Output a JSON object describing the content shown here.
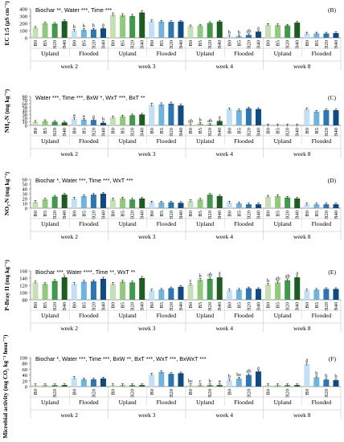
{
  "colors": {
    "upland": [
      "#c5e0b3",
      "#8fcb7a",
      "#3f9a4a",
      "#1b5e20"
    ],
    "flooded": [
      "#bfe0f5",
      "#6fb3e0",
      "#2b77b5",
      "#0d4b86"
    ],
    "axis": "#777777",
    "text": "#000000"
  },
  "groups": {
    "weeks": [
      "week 2",
      "week 3",
      "week 4",
      "week 8"
    ],
    "treatments": [
      "Upland",
      "Flooded"
    ]
  },
  "chart_data": [
    {
      "type": "bar",
      "panel": "(B)",
      "ylabel": "EC 1:5 (µS cm⁻¹)",
      "annotation": "Biochar **, Water ***, Time ***",
      "yticks": [
        "0",
        "100",
        "200",
        "300",
        "400"
      ],
      "ylim": [
        0,
        400
      ],
      "categories": [
        "B0",
        "B5",
        "B20",
        "B40"
      ],
      "values": [
        [
          [
            140,
            200,
            195,
            230
          ],
          [
            100,
            110,
            115,
            130
          ]
        ],
        [
          [
            320,
            310,
            300,
            350
          ],
          [
            230,
            225,
            220,
            225
          ]
        ],
        [
          [
            160,
            170,
            205,
            225
          ],
          [
            20,
            25,
            40,
            85
          ]
        ],
        [
          [
            180,
            175,
            170,
            210
          ],
          [
            60,
            60,
            60,
            65
          ]
        ]
      ],
      "letters": [
        [
          [
            "",
            "",
            "",
            ""
          ],
          [
            "b",
            "b",
            "b",
            "a"
          ]
        ],
        [
          [
            "",
            "",
            "",
            ""
          ],
          [
            "",
            "",
            "",
            ""
          ]
        ],
        [
          [
            "",
            "",
            "",
            ""
          ],
          [
            "b",
            "b",
            "ab",
            "a"
          ]
        ],
        [
          [
            "",
            "",
            "",
            ""
          ],
          [
            "",
            "",
            "",
            ""
          ]
        ]
      ]
    },
    {
      "type": "bar",
      "panel": "(C)",
      "ylabel": "NH₄-N (mg kg⁻¹)",
      "annotation": "Water ***, Time ***, BxW *, WxT ***, BxT **",
      "yticks": [
        "0",
        "10",
        "20",
        "30",
        "40",
        "50",
        "60",
        "70",
        "80"
      ],
      "ylim": [
        0,
        80
      ],
      "categories": [
        "B0",
        "B5",
        "B20",
        "B40"
      ],
      "values": [
        [
          [
            10,
            12,
            10,
            8
          ],
          [
            18,
            16,
            15,
            7
          ]
        ],
        [
          [
            22,
            25,
            28,
            30
          ],
          [
            57,
            58,
            60,
            55
          ]
        ],
        [
          [
            1,
            5,
            2,
            12
          ],
          [
            45,
            42,
            47,
            45
          ]
        ],
        [
          [
            0,
            0,
            0,
            0
          ],
          [
            45,
            38,
            42,
            42
          ]
        ]
      ],
      "letters": [
        [
          [
            "",
            "",
            "",
            ""
          ],
          [
            "a",
            "a",
            "a",
            "b"
          ]
        ],
        [
          [
            "",
            "",
            "",
            ""
          ],
          [
            "",
            "",
            "",
            ""
          ]
        ],
        [
          [
            "ab",
            "b",
            "ab",
            "a"
          ],
          [
            "",
            "",
            "",
            ""
          ]
        ],
        [
          [
            "",
            "",
            "",
            ""
          ],
          [
            "",
            "",
            "",
            ""
          ]
        ]
      ]
    },
    {
      "type": "bar",
      "panel": "(D)",
      "ylabel": "NO₃-N (mg kg⁻¹)",
      "annotation": "Biochar *, Water ***, Time ***, WxT ***",
      "yticks": [
        "0",
        "10",
        "20",
        "30",
        "40",
        "50",
        "60"
      ],
      "ylim": [
        0,
        60
      ],
      "categories": [
        "B0",
        "B5",
        "B20",
        "B40"
      ],
      "values": [
        [
          [
            13,
            18,
            24,
            28
          ],
          [
            20,
            25,
            28,
            30
          ]
        ],
        [
          [
            18,
            20,
            18,
            20
          ],
          [
            12,
            12,
            12,
            11
          ]
        ],
        [
          [
            15,
            18,
            28,
            25
          ],
          [
            12,
            10,
            8,
            8
          ]
        ],
        [
          [
            24,
            25,
            22,
            20
          ],
          [
            8,
            8,
            8,
            8
          ]
        ]
      ],
      "letters": [
        [
          [
            "",
            "",
            "",
            ""
          ],
          [
            "",
            "",
            "",
            ""
          ]
        ],
        [
          [
            "",
            "",
            "",
            ""
          ],
          [
            "",
            "",
            "",
            ""
          ]
        ],
        [
          [
            "",
            "",
            "",
            ""
          ],
          [
            "",
            "",
            "",
            ""
          ]
        ],
        [
          [
            "",
            "",
            "",
            ""
          ],
          [
            "",
            "",
            "",
            ""
          ]
        ]
      ]
    },
    {
      "type": "bar",
      "panel": "(E)",
      "ylabel": "P-Bray II (mg kg⁻¹)",
      "annotation": "Biochar ***, Water ****, Time **, WxT **",
      "yticks": [
        "80",
        "100",
        "120",
        "140",
        "160"
      ],
      "ylim": [
        80,
        160
      ],
      "categories": [
        "B0",
        "B5",
        "B20",
        "B40"
      ],
      "values": [
        [
          [
            128,
            124,
            132,
            142
          ],
          [
            124,
            130,
            131,
            138
          ]
        ],
        [
          [
            124,
            130,
            128,
            140
          ],
          [
            106,
            108,
            112,
            116
          ]
        ],
        [
          [
            122,
            135,
            138,
            142
          ],
          [
            106,
            108,
            112,
            110
          ]
        ],
        [
          [
            122,
            128,
            134,
            142
          ],
          [
            106,
            108,
            110,
            110
          ]
        ]
      ],
      "letters": [
        [
          [
            "",
            "",
            "",
            ""
          ],
          [
            "",
            "",
            "",
            ""
          ]
        ],
        [
          [
            "",
            "",
            "",
            ""
          ],
          [
            "",
            "",
            "",
            ""
          ]
        ],
        [
          [
            "c",
            "b",
            "ab",
            "a"
          ],
          [
            "",
            "",
            "",
            ""
          ]
        ],
        [
          [
            "b",
            "ab",
            "ab",
            "a"
          ],
          [
            "",
            "",
            "",
            ""
          ]
        ]
      ]
    },
    {
      "type": "bar",
      "panel": "(F)",
      "ylabel": "Microbial activity (mg CO₂ kg⁻¹ hour⁻¹)",
      "annotation": "Biochar *, Water ***, Time ***, BxW **, BxT ***, WxT ***, BxWxT ***",
      "yticks": [
        "0",
        "20",
        "40",
        "60",
        "80",
        "100"
      ],
      "ylim": [
        0,
        100
      ],
      "categories": [
        "B0",
        "B20"
      ],
      "category_positions": [
        "B0",
        "B5",
        "B20",
        "B40"
      ],
      "values": [
        [
          [
            5,
            5,
            5,
            5
          ],
          [
            30,
            25,
            25,
            28
          ]
        ],
        [
          [
            5,
            5,
            5,
            5
          ],
          [
            42,
            50,
            44,
            46
          ]
        ],
        [
          [
            5,
            5,
            5,
            5
          ],
          [
            22,
            28,
            40,
            52
          ]
        ],
        [
          [
            5,
            5,
            5,
            5
          ],
          [
            78,
            32,
            24,
            22
          ]
        ]
      ],
      "letters": [
        [
          [
            "",
            "",
            "",
            ""
          ],
          [
            "",
            "",
            "",
            ""
          ]
        ],
        [
          [
            "",
            "",
            "",
            ""
          ],
          [
            "",
            "",
            "",
            ""
          ]
        ],
        [
          [
            "bc",
            "c",
            "b",
            "a"
          ],
          [
            "b",
            "bc",
            "ab",
            "a"
          ]
        ],
        [
          [
            "",
            "",
            "",
            ""
          ],
          [
            "a",
            "b",
            "b",
            "b"
          ]
        ]
      ]
    }
  ]
}
